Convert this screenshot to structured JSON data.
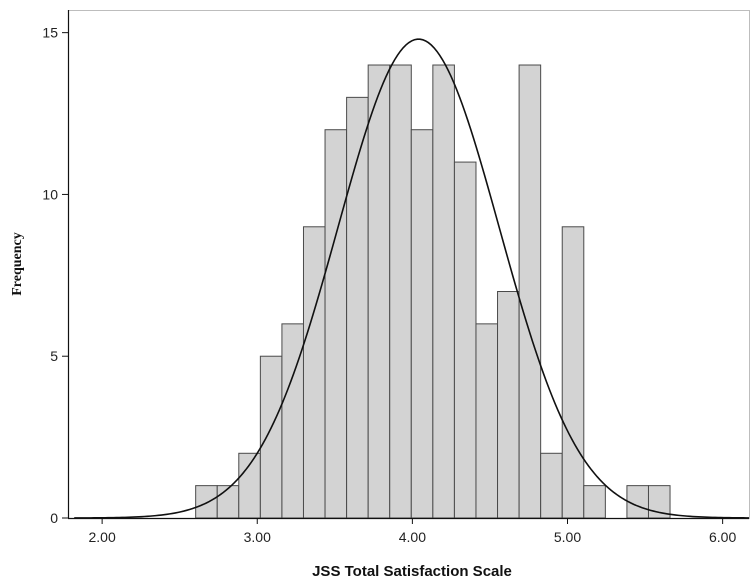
{
  "chart_data": {
    "type": "bar",
    "subtype": "histogram",
    "title": "",
    "xlabel": "JSS Total Satisfaction Scale",
    "ylabel": "Frequency",
    "xlim": [
      1.78,
      6.17
    ],
    "ylim": [
      0,
      15.7
    ],
    "x_ticks": [
      "2.00",
      "3.00",
      "4.00",
      "5.00",
      "6.00"
    ],
    "y_ticks": [
      "0",
      "5",
      "10",
      "15"
    ],
    "grid": false,
    "bin_width": 0.139,
    "bins": [
      {
        "start": 2.603,
        "value": 1
      },
      {
        "start": 2.742,
        "value": 1
      },
      {
        "start": 2.881,
        "value": 2
      },
      {
        "start": 3.02,
        "value": 5
      },
      {
        "start": 3.159,
        "value": 6
      },
      {
        "start": 3.298,
        "value": 9
      },
      {
        "start": 3.437,
        "value": 12
      },
      {
        "start": 3.576,
        "value": 13
      },
      {
        "start": 3.715,
        "value": 14
      },
      {
        "start": 3.854,
        "value": 14
      },
      {
        "start": 3.993,
        "value": 12
      },
      {
        "start": 4.132,
        "value": 14
      },
      {
        "start": 4.271,
        "value": 11
      },
      {
        "start": 4.41,
        "value": 6
      },
      {
        "start": 4.549,
        "value": 7
      },
      {
        "start": 4.688,
        "value": 14
      },
      {
        "start": 4.827,
        "value": 2
      },
      {
        "start": 4.966,
        "value": 9
      },
      {
        "start": 5.105,
        "value": 1
      },
      {
        "start": 5.383,
        "value": 1
      },
      {
        "start": 5.522,
        "value": 1
      }
    ],
    "normal_curve": {
      "mean": 4.04,
      "sd": 0.52,
      "peak": 14.8,
      "x_range": [
        1.82,
        6.17
      ]
    },
    "colors": {
      "bar_fill": "#d3d3d3",
      "bar_stroke": "#4a4a4a",
      "curve": "#111111",
      "axis": "#111111"
    }
  }
}
